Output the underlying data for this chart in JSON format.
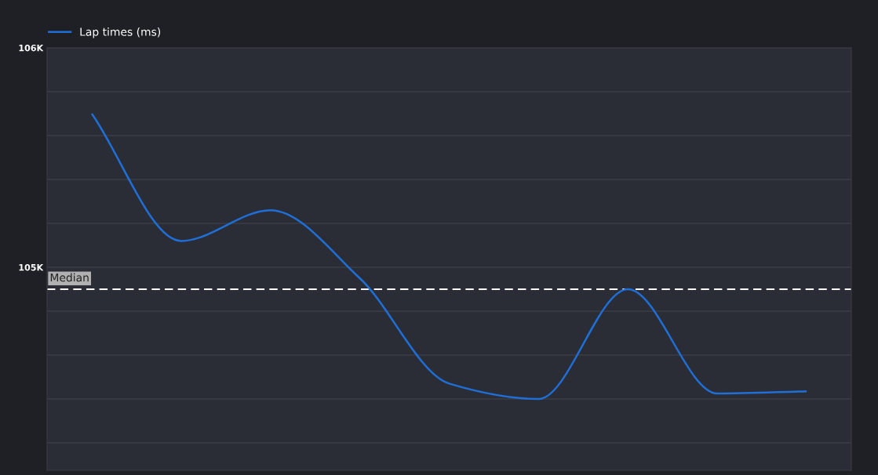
{
  "chart_data": {
    "type": "line",
    "categories": [
      null,
      null,
      null,
      null,
      null,
      null,
      null,
      null,
      null
    ],
    "series": [
      {
        "name": "Lap times (ms)",
        "color": "#1f6fd6",
        "values": [
          105700,
          105120,
          105260,
          104950,
          104470,
          104400,
          104900,
          104425,
          104435
        ]
      }
    ],
    "ylim": [
      104075,
      106000
    ],
    "yticks": [
      {
        "value": 104200,
        "label": null
      },
      {
        "value": 104400,
        "label": null
      },
      {
        "value": 104600,
        "label": null
      },
      {
        "value": 104800,
        "label": null
      },
      {
        "value": 105000,
        "label": "105K"
      },
      {
        "value": 105200,
        "label": null
      },
      {
        "value": 105400,
        "label": null
      },
      {
        "value": 105600,
        "label": null
      },
      {
        "value": 105800,
        "label": null
      },
      {
        "value": 106000,
        "label": "106K"
      }
    ],
    "grid": "y",
    "legend": "top left",
    "marker": "none",
    "line_style": "solid",
    "ref_lines": [
      {
        "axis": "y",
        "value": 104900,
        "label": "Median",
        "color": "#ffffff",
        "line_style": "dashed"
      }
    ]
  }
}
